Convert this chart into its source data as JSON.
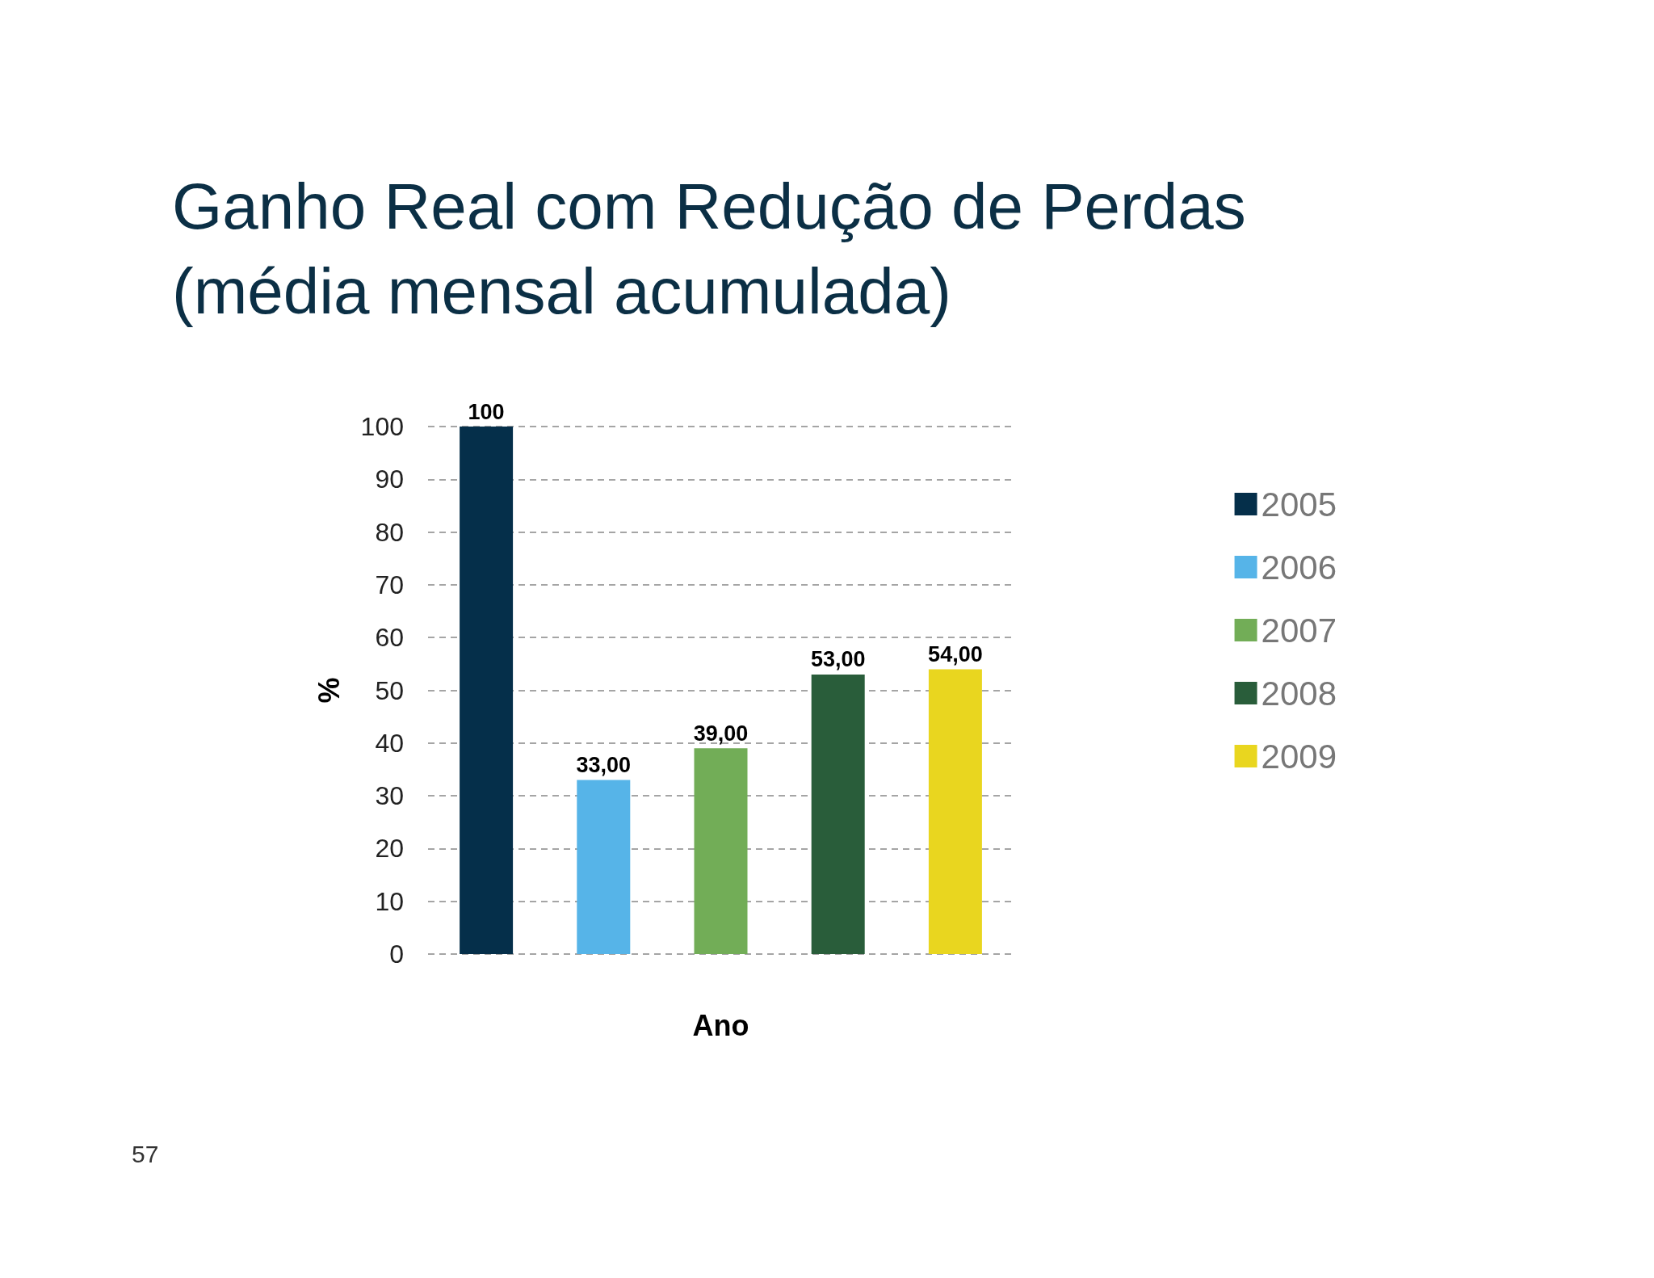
{
  "chart_data": {
    "type": "bar",
    "title": "Ganho Real com Redução de Perdas (média mensal acumulada)",
    "xlabel": "Ano",
    "ylabel": "%",
    "categories": [
      null
    ],
    "series": [
      {
        "name": "2005",
        "color": "#052f4a",
        "values": [
          100
        ],
        "value_labels": [
          "100"
        ]
      },
      {
        "name": "2006",
        "color": "#56b4e8",
        "values": [
          33
        ],
        "value_labels": [
          "33,00"
        ]
      },
      {
        "name": "2007",
        "color": "#72ad57",
        "values": [
          39
        ],
        "value_labels": [
          "39,00"
        ]
      },
      {
        "name": "2008",
        "color": "#295d3a",
        "values": [
          53
        ],
        "value_labels": [
          "53,00"
        ]
      },
      {
        "name": "2009",
        "color": "#e9d61f",
        "values": [
          54
        ],
        "value_labels": [
          "54,00"
        ]
      }
    ],
    "ylim": [
      0,
      100
    ],
    "yticks": [
      0,
      10,
      20,
      30,
      40,
      50,
      60,
      70,
      80,
      90,
      100
    ],
    "grid": "y",
    "legend": "right",
    "annotations": [
      "57"
    ]
  }
}
